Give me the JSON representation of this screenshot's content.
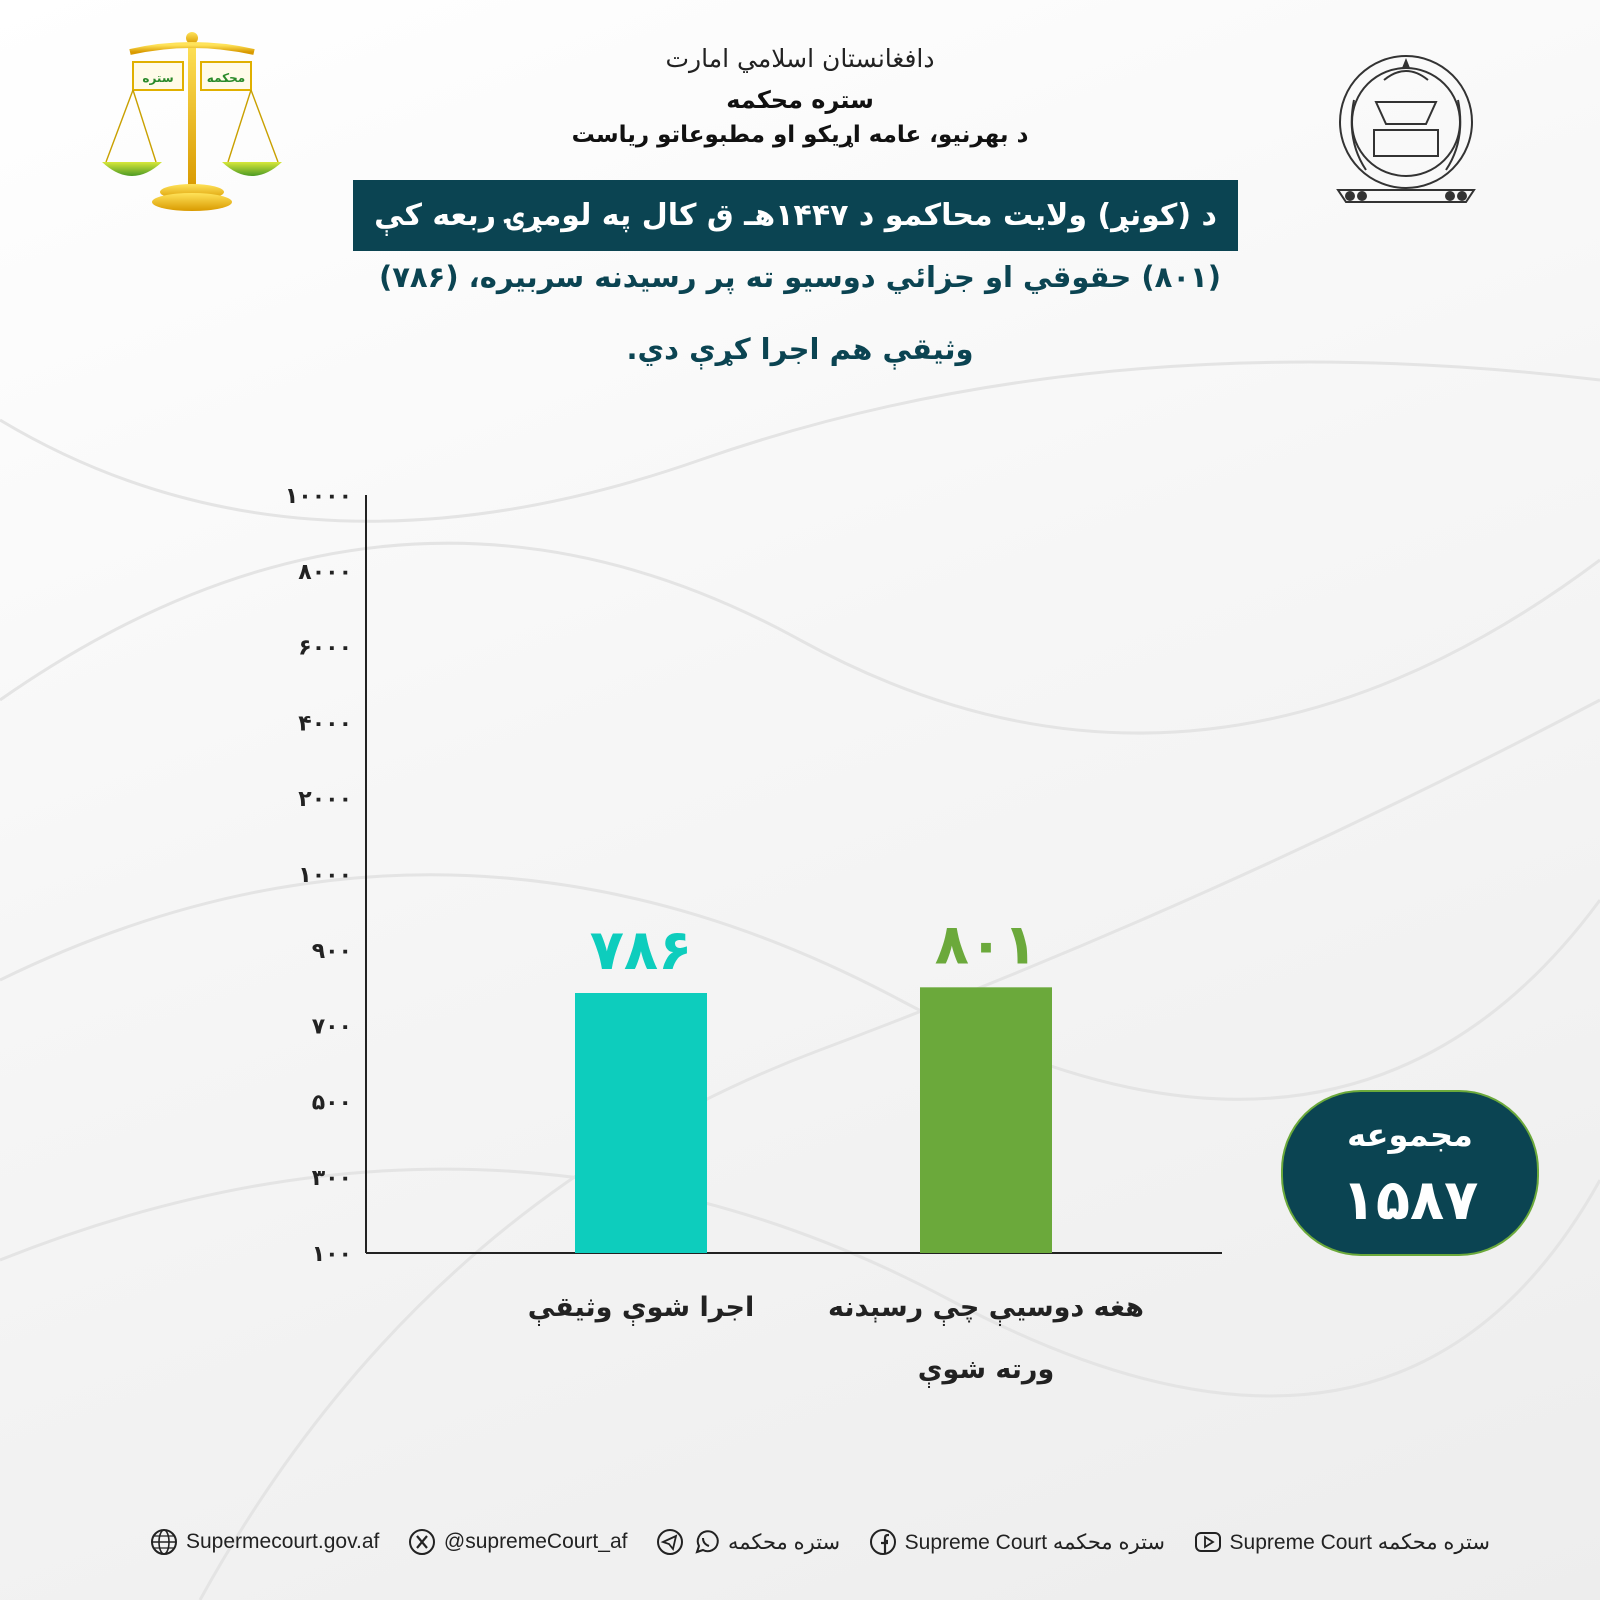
{
  "header": {
    "calligraphy": "دافغانستان اسلامي امارت",
    "court_name": "ستره محکمه",
    "department": "د بهرنیو، عامه اړیکو او مطبوعاتو ریاست",
    "scales_label_left": "ستره",
    "scales_label_right": "محکمه"
  },
  "title": "د (کونړ) ولایت محاکمو د ۱۴۴۷هـ ق کال په لومړۍ ربعه کې",
  "subtitle_line1": "(۸۰۱) حقوقي او جزائي دوسیو ته پر رسیدنه سربیره، (۷۸۶)",
  "subtitle_line2": "وثیقې هم اجرا کړې دي.",
  "colors": {
    "banner": "#0b4452",
    "bar_executed": "#0dcdbd",
    "bar_cases": "#6ba93b",
    "axis": "#222222"
  },
  "chart_data": {
    "type": "bar",
    "y_tick_labels": [
      "۱۰۰",
      "۳۰۰",
      "۵۰۰",
      "۷۰۰",
      "۹۰۰",
      "۱۰۰۰",
      "۲۰۰۰",
      "۴۰۰۰",
      "۶۰۰۰",
      "۸۰۰۰",
      "۱۰۰۰۰"
    ],
    "y_tick_values": [
      100,
      300,
      500,
      700,
      900,
      1000,
      2000,
      4000,
      6000,
      8000,
      10000
    ],
    "categories": [
      "اجرا شوې وثیقې",
      "هغه دوسیې چې رسېدنه ورته شوې"
    ],
    "category_lines": [
      [
        "اجرا شوې وثیقې"
      ],
      [
        "هغه دوسیې چې رسېدنه",
        "ورته شوې"
      ]
    ],
    "values": [
      786,
      801
    ],
    "value_labels": [
      "۷۸۶",
      "۸۰۱"
    ],
    "grid": false
  },
  "total": {
    "label": "مجموعه",
    "value": "۱۵۸۷"
  },
  "footer": {
    "website": "Supermecourt.gov.af",
    "x_handle": "@supremeCourt_af",
    "messaging": "ستره محکمه",
    "facebook": "Supreme Court ستره محکمه",
    "youtube": "Supreme Court ستره محکمه"
  }
}
